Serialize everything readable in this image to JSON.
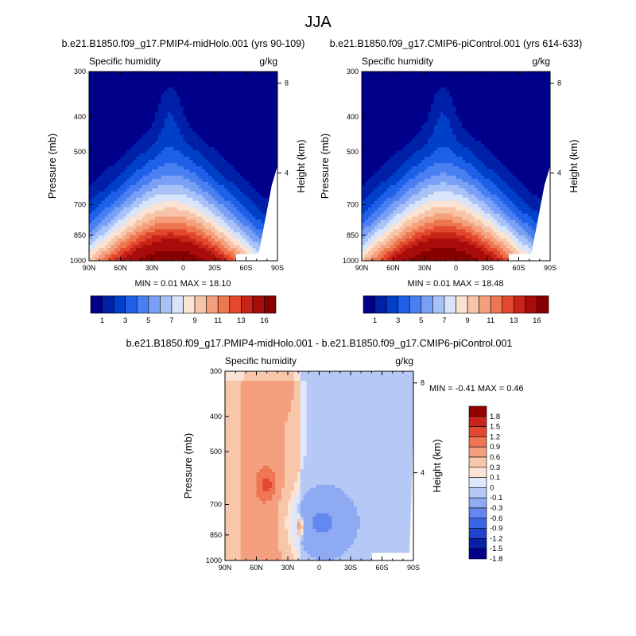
{
  "figure": {
    "title": "JJA"
  },
  "colors": {
    "sequential": [
      "#00008b",
      "#0020a8",
      "#0040c8",
      "#1e60e8",
      "#4a7ff2",
      "#7aa0f5",
      "#a8c2f7",
      "#d7e4fa",
      "#fbe3d3",
      "#f8c4a8",
      "#f4a07c",
      "#ee7650",
      "#e3482e",
      "#c92418",
      "#a80d0b",
      "#870000"
    ],
    "diverging": [
      "#00008b",
      "#0a1fa6",
      "#1e44cc",
      "#3a66e6",
      "#6388ef",
      "#8eaaf3",
      "#b5c8f6",
      "#dde8fb",
      "#fbe4d5",
      "#f8c6a8",
      "#f4a07e",
      "#ee7652",
      "#e2482f",
      "#c82419",
      "#940000"
    ]
  },
  "chart_data": [
    {
      "type": "contour",
      "panel": "left",
      "title": "b.e21.B1850.f09_g17.PMIP4-midHolo.001 (yrs 90-109)",
      "left_label": "Specific humidity",
      "right_label": "g/kg",
      "ylabel": "Pressure (mb)",
      "y2label": "Height (km)",
      "x_ticks": [
        "90N",
        "60N",
        "30N",
        "0",
        "30S",
        "60S",
        "90S"
      ],
      "y_ticks": [
        "300",
        "400",
        "500",
        "700",
        "850",
        "1000"
      ],
      "y2_ticks": [
        "8",
        "4"
      ],
      "stats": "MIN =   0.01   MAX =  18.10",
      "colorbar": {
        "labels": [
          "1",
          "3",
          "5",
          "7",
          "9",
          "11",
          "13",
          "16"
        ]
      },
      "levels": [
        1,
        2,
        3,
        4,
        5,
        6,
        7,
        8,
        9,
        10,
        11,
        12,
        13,
        14,
        16
      ],
      "peak_max": 18.1
    },
    {
      "type": "contour",
      "panel": "right",
      "title": "b.e21.B1850.f09_g17.CMIP6-piControl.001 (yrs 614-633)",
      "left_label": "Specific humidity",
      "right_label": "g/kg",
      "ylabel": "Pressure (mb)",
      "y2label": "Height (km)",
      "x_ticks": [
        "90N",
        "60N",
        "30N",
        "0",
        "30S",
        "60S",
        "90S"
      ],
      "y_ticks": [
        "300",
        "400",
        "500",
        "700",
        "850",
        "1000"
      ],
      "y2_ticks": [
        "8",
        "4"
      ],
      "stats": "MIN =   0.01   MAX =  18.48",
      "colorbar": {
        "labels": [
          "1",
          "3",
          "5",
          "7",
          "9",
          "11",
          "13",
          "16"
        ]
      },
      "levels": [
        1,
        2,
        3,
        4,
        5,
        6,
        7,
        8,
        9,
        10,
        11,
        12,
        13,
        14,
        16
      ],
      "peak_max": 18.48
    },
    {
      "type": "contour",
      "panel": "difference",
      "title": "b.e21.B1850.f09_g17.PMIP4-midHolo.001 - b.e21.B1850.f09_g17.CMIP6-piControl.001",
      "left_label": "Specific humidity",
      "right_label": "g/kg",
      "ylabel": "Pressure (mb)",
      "y2label": "Height (km)",
      "x_ticks": [
        "90N",
        "60N",
        "30N",
        "0",
        "30S",
        "60S",
        "90S"
      ],
      "y_ticks": [
        "300",
        "400",
        "500",
        "700",
        "850",
        "1000"
      ],
      "y2_ticks": [
        "8",
        "4"
      ],
      "stats": "MIN =  -0.41   MAX =    0.46",
      "colorbar": {
        "labels": [
          "1.8",
          "1.5",
          "1.2",
          "0.9",
          "0.6",
          "0.3",
          "0.1",
          "0",
          "-0.1",
          "-0.3",
          "-0.6",
          "-0.9",
          "-1.2",
          "-1.5",
          "-1.8"
        ]
      }
    }
  ]
}
